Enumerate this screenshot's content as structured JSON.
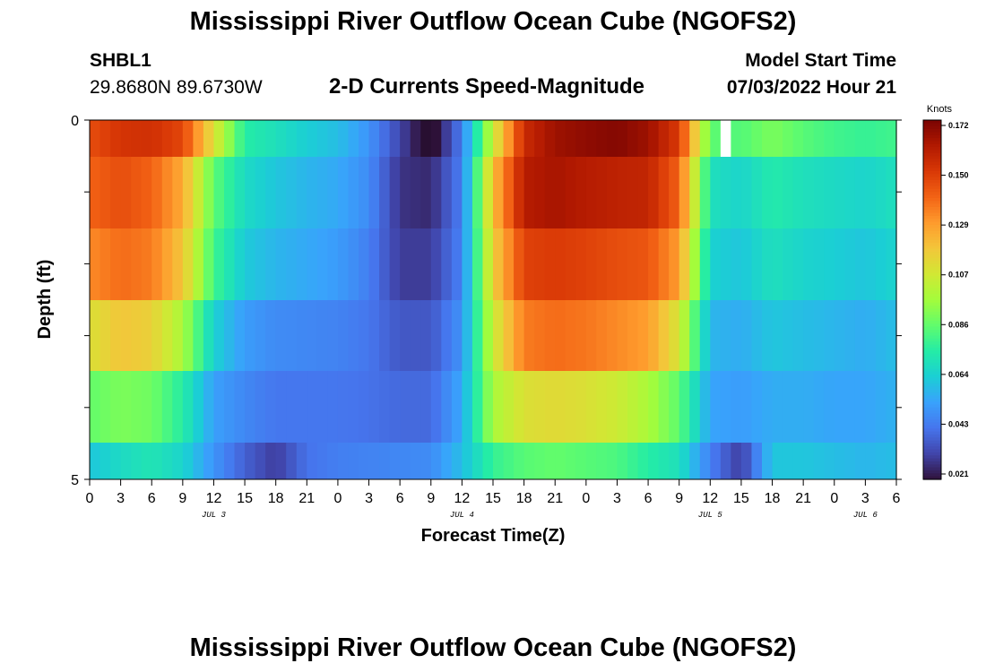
{
  "page": {
    "title": "Mississippi River Outflow Ocean Cube (NGOFS2)",
    "title_repeat": "Mississippi River Outflow Ocean Cube (NGOFS2)",
    "station_id": "SHBL1",
    "coordinates": "29.8680N  89.6730W",
    "subtitle": "2-D Currents Speed-Magnitude",
    "model_start_label": "Model Start Time",
    "model_start_value": "07/03/2022 Hour 21"
  },
  "chart_data": {
    "type": "heatmap",
    "title": "2-D Currents Speed-Magnitude",
    "xlabel": "Forecast Time(Z)",
    "ylabel": "Depth (ft)",
    "x_tick_labels": [
      "0",
      "3",
      "6",
      "9",
      "12",
      "15",
      "18",
      "21",
      "0",
      "3",
      "6",
      "9",
      "12",
      "15",
      "18",
      "21",
      "0",
      "3",
      "6",
      "9",
      "12",
      "15",
      "18",
      "21",
      "0",
      "3",
      "6"
    ],
    "x_day_labels": [
      {
        "label": "JUL 3",
        "hour_index": 12
      },
      {
        "label": "JUL 4",
        "hour_index": 36
      },
      {
        "label": "JUL 5",
        "hour_index": 60
      },
      {
        "label": "JUL 6",
        "hour_index": 75
      }
    ],
    "y_tick_labels": [
      "0",
      "",
      "",
      "",
      "",
      "5"
    ],
    "ylim": [
      0,
      5
    ],
    "colorbar": {
      "title": "Knots",
      "min": 0.021,
      "max": 0.172,
      "tick_labels": [
        "0.172",
        "0.150",
        "0.129",
        "0.107",
        "0.086",
        "0.064",
        "0.043",
        "0.021"
      ],
      "colors": [
        "#30123b",
        "#4145ab",
        "#4675ed",
        "#39a2fc",
        "#1bcfd4",
        "#24eca6",
        "#61fc6c",
        "#a4fc3b",
        "#d1e834",
        "#f3c63a",
        "#fe9b2d",
        "#f36315",
        "#d93806",
        "#b11901",
        "#7a0402"
      ]
    },
    "time_hours": [
      0,
      3,
      6,
      9,
      12,
      15,
      18,
      21,
      24,
      27,
      30,
      33,
      36,
      39,
      42,
      45,
      48,
      51,
      54,
      57,
      60,
      63,
      66,
      69,
      72,
      75,
      78
    ],
    "depth_layers": [
      {
        "depth": "0.0-0.5",
        "values": [
          0.145,
          0.152,
          0.153,
          0.147,
          0.11,
          0.075,
          0.07,
          0.064,
          0.06,
          0.05,
          0.032,
          0.015,
          0.045,
          0.105,
          0.155,
          0.165,
          0.168,
          0.17,
          0.165,
          0.15,
          0.085,
          0.083,
          0.09,
          0.084,
          0.08,
          0.078,
          0.08
        ]
      },
      {
        "depth": "0.5-1.5",
        "values": [
          0.14,
          0.145,
          0.14,
          0.125,
          0.085,
          0.068,
          0.062,
          0.058,
          0.055,
          0.048,
          0.028,
          0.026,
          0.045,
          0.12,
          0.16,
          0.163,
          0.16,
          0.158,
          0.157,
          0.14,
          0.07,
          0.066,
          0.074,
          0.07,
          0.068,
          0.066,
          0.07
        ]
      },
      {
        "depth": "1.5-2.5",
        "values": [
          0.132,
          0.138,
          0.135,
          0.118,
          0.08,
          0.063,
          0.058,
          0.055,
          0.052,
          0.045,
          0.03,
          0.03,
          0.046,
          0.115,
          0.148,
          0.15,
          0.148,
          0.145,
          0.143,
          0.128,
          0.065,
          0.062,
          0.07,
          0.066,
          0.064,
          0.062,
          0.066
        ]
      },
      {
        "depth": "2.5-3.5",
        "values": [
          0.11,
          0.118,
          0.115,
          0.098,
          0.065,
          0.052,
          0.048,
          0.047,
          0.046,
          0.043,
          0.036,
          0.036,
          0.05,
          0.105,
          0.135,
          0.138,
          0.136,
          0.132,
          0.128,
          0.108,
          0.058,
          0.056,
          0.062,
          0.06,
          0.058,
          0.056,
          0.06
        ]
      },
      {
        "depth": "3.5-4.5",
        "values": [
          0.086,
          0.09,
          0.088,
          0.075,
          0.053,
          0.047,
          0.043,
          0.043,
          0.043,
          0.042,
          0.04,
          0.04,
          0.055,
          0.098,
          0.11,
          0.112,
          0.11,
          0.106,
          0.098,
          0.085,
          0.054,
          0.052,
          0.056,
          0.056,
          0.054,
          0.054,
          0.057
        ]
      },
      {
        "depth": "4.5-5.0",
        "values": [
          0.062,
          0.068,
          0.072,
          0.066,
          0.05,
          0.038,
          0.03,
          0.042,
          0.045,
          0.046,
          0.047,
          0.048,
          0.06,
          0.078,
          0.084,
          0.086,
          0.084,
          0.082,
          0.075,
          0.07,
          0.045,
          0.03,
          0.062,
          0.062,
          0.06,
          0.058,
          0.06
        ]
      }
    ],
    "missing": [
      {
        "layer": 0,
        "hour": 61
      }
    ],
    "grid": false,
    "legend": "colorbar-right"
  }
}
